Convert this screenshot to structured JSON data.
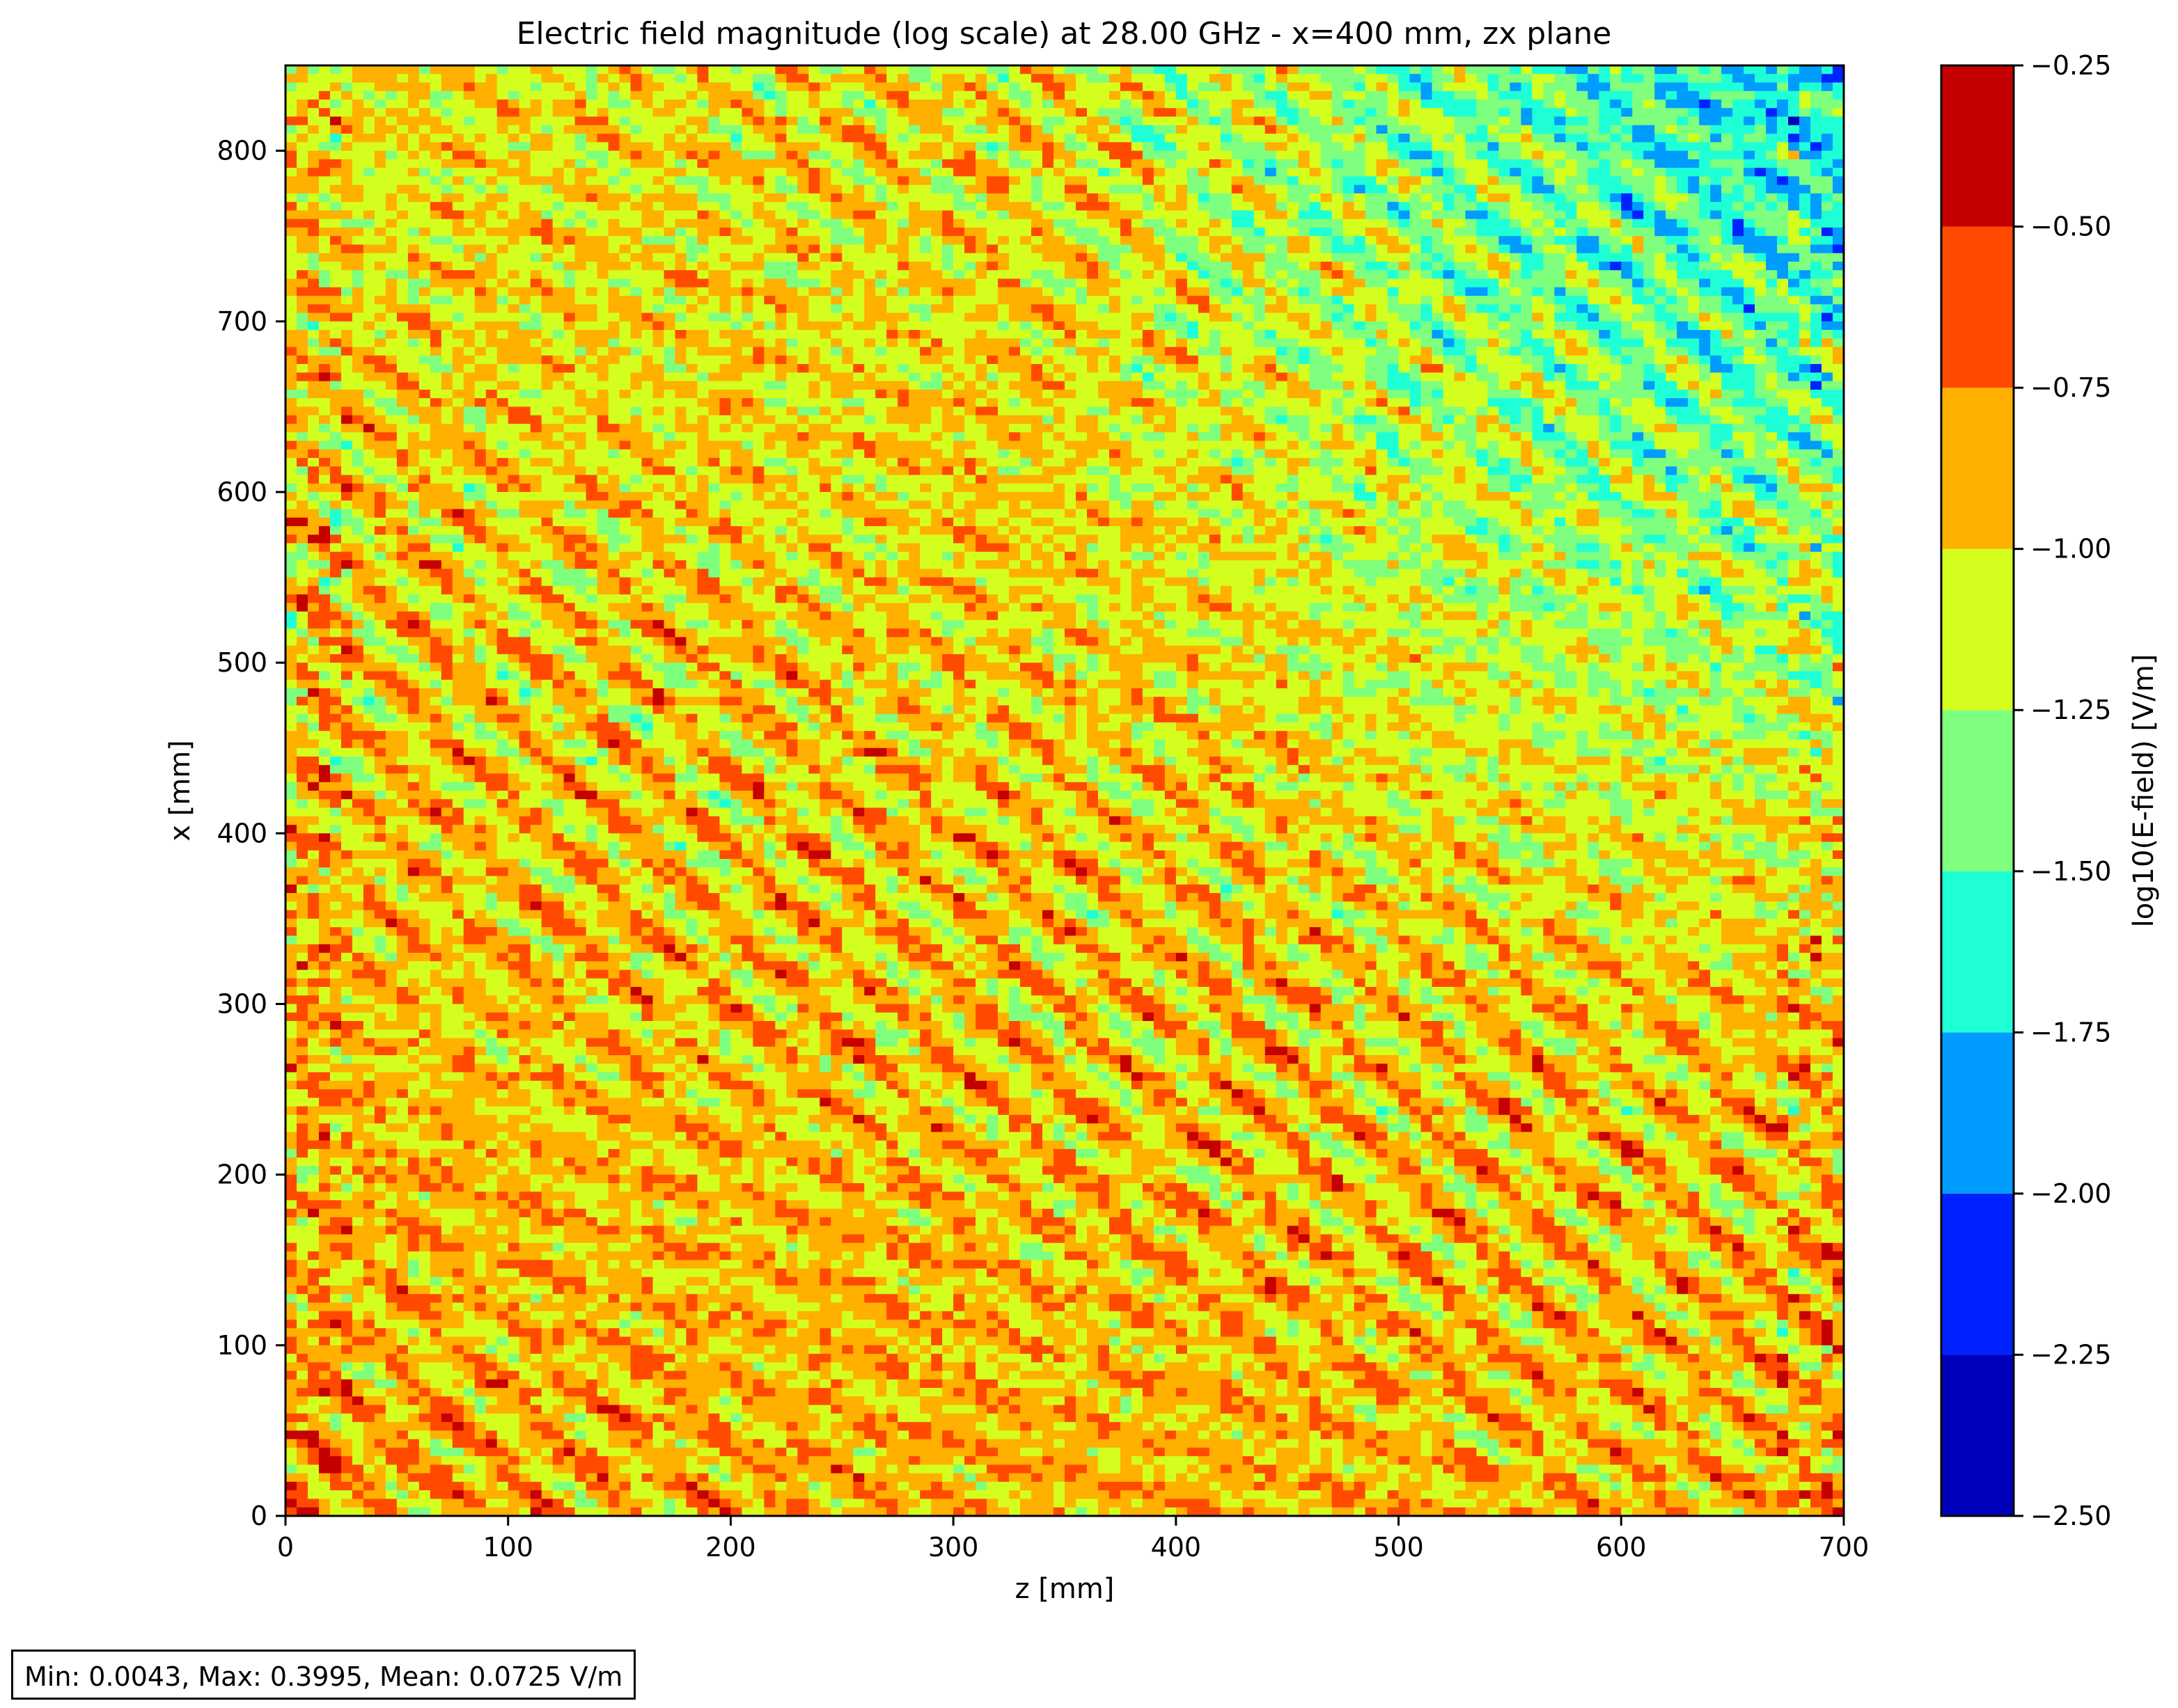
{
  "chart_data": {
    "type": "heatmap",
    "title": "Electric field magnitude (log scale) at 28.00 GHz - x=400 mm, zx plane",
    "xlabel": "z [mm]",
    "ylabel": "x [mm]",
    "xlim": [
      0,
      700
    ],
    "ylim": [
      0,
      850
    ],
    "x_ticks": [
      0,
      100,
      200,
      300,
      400,
      500,
      600,
      700
    ],
    "y_ticks": [
      0,
      100,
      200,
      300,
      400,
      500,
      600,
      700,
      800
    ],
    "colorbar": {
      "label": "log10(E-field) [V/m]",
      "levels": [
        -2.5,
        -2.25,
        -2.0,
        -1.75,
        -1.5,
        -1.25,
        -1.0,
        -0.75,
        -0.5,
        -0.25
      ],
      "tick_labels": [
        "−2.50",
        "−2.25",
        "−2.00",
        "−1.75",
        "−1.50",
        "−1.25",
        "−1.00",
        "−0.75",
        "−0.50",
        "−0.25"
      ],
      "colors": [
        "#0000bb",
        "#0022ff",
        "#009cff",
        "#1effd6",
        "#7eff7e",
        "#d4ff1e",
        "#ffb000",
        "#ff4a00",
        "#c40000"
      ]
    },
    "colormap": "jet"
  },
  "stats": {
    "text": "Min: 0.0043, Max: 0.3995, Mean: 0.0725 V/m"
  }
}
